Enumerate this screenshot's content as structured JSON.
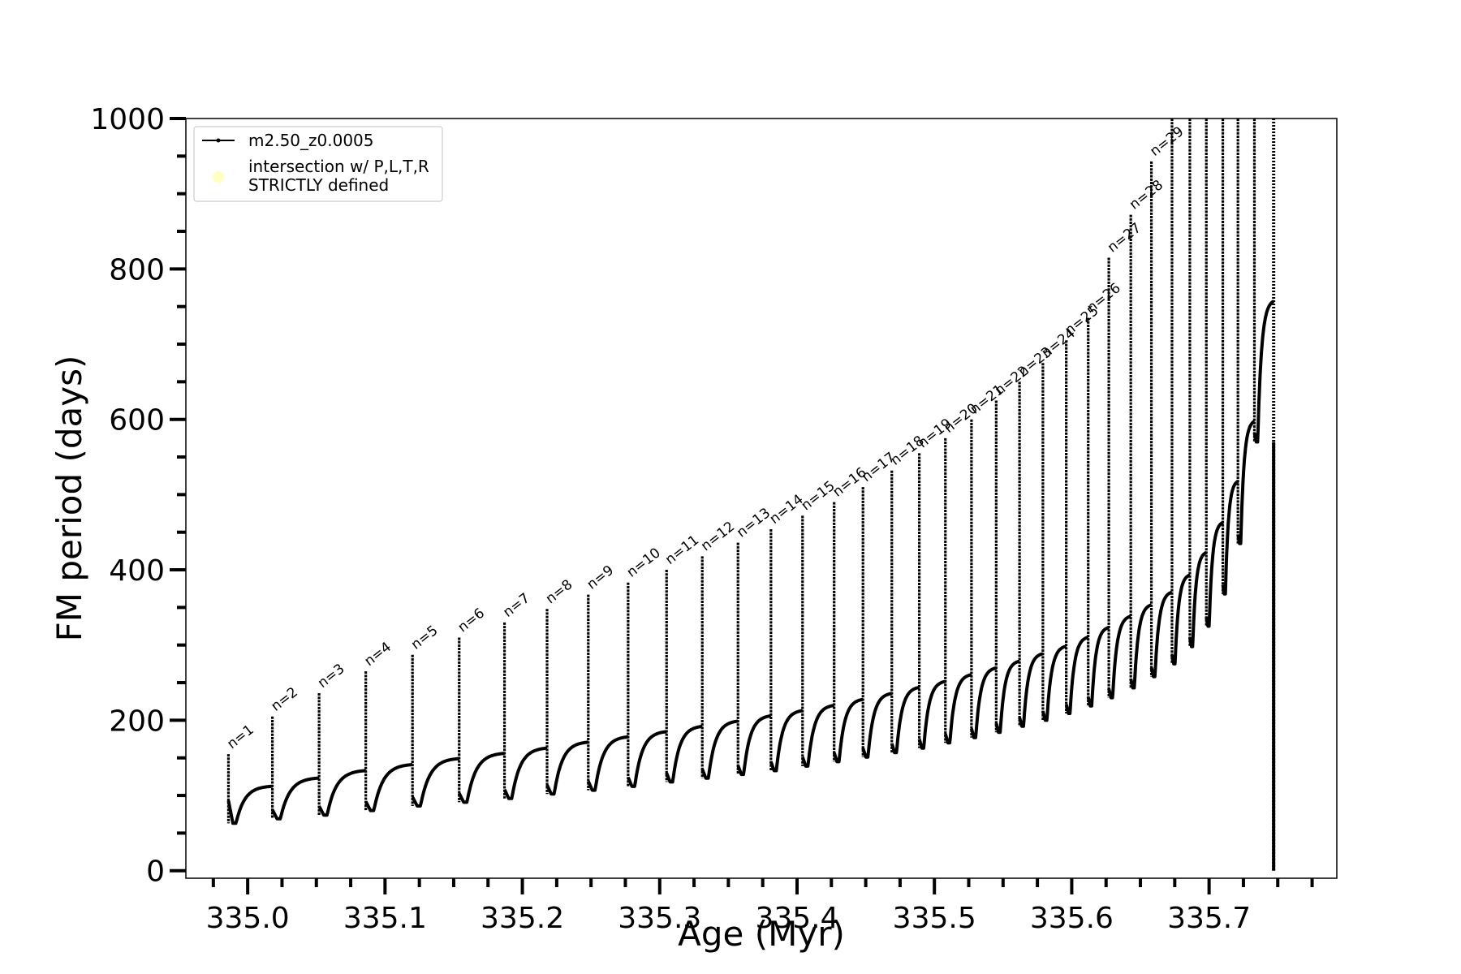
{
  "chart_data": {
    "type": "line",
    "title": "",
    "xlabel": "Age (Myr)",
    "ylabel": "FM period (days)",
    "xlim": [
      334.955,
      335.793
    ],
    "ylim": [
      -10,
      1000
    ],
    "x_ticks": [
      335.0,
      335.1,
      335.2,
      335.3,
      335.4,
      335.5,
      335.6,
      335.7
    ],
    "x_tick_labels": [
      "335.0",
      "335.1",
      "335.2",
      "335.3",
      "335.4",
      "335.5",
      "335.6",
      "335.7"
    ],
    "y_ticks": [
      0,
      200,
      400,
      600,
      800,
      1000
    ],
    "y_tick_labels": [
      "0",
      "200",
      "400",
      "600",
      "800",
      "1000"
    ],
    "x_minor_step": 0.025,
    "y_minor_step": 50,
    "grid": false,
    "legend": {
      "placement": "top-left",
      "entries": [
        {
          "label": "m2.50_z0.0005",
          "marker": "line-dot",
          "color": "#000000"
        },
        {
          "label": "intersection w/ P,L,T,R",
          "label2": "STRICTLY defined",
          "marker": "circle",
          "color": "#ffffc0"
        }
      ]
    },
    "series": [
      {
        "name": "m2.50_z0.0005",
        "color": "#000000",
        "pulses": [
          {
            "n": "n=1",
            "age": 334.986,
            "spike": 155,
            "trough": 63,
            "plateau": 113
          },
          {
            "n": "n=2",
            "age": 335.018,
            "spike": 205,
            "trough": 69,
            "plateau": 124
          },
          {
            "n": "n=3",
            "age": 335.052,
            "spike": 236,
            "trough": 74,
            "plateau": 134
          },
          {
            "n": "n=4",
            "age": 335.086,
            "spike": 265,
            "trough": 80,
            "plateau": 142
          },
          {
            "n": "n=5",
            "age": 335.12,
            "spike": 287,
            "trough": 86,
            "plateau": 150
          },
          {
            "n": "n=6",
            "age": 335.154,
            "spike": 310,
            "trough": 91,
            "plateau": 157
          },
          {
            "n": "n=7",
            "age": 335.187,
            "spike": 330,
            "trough": 96,
            "plateau": 164
          },
          {
            "n": "n=8",
            "age": 335.218,
            "spike": 348,
            "trough": 102,
            "plateau": 172
          },
          {
            "n": "n=9",
            "age": 335.248,
            "spike": 367,
            "trough": 107,
            "plateau": 179
          },
          {
            "n": "n=10",
            "age": 335.277,
            "spike": 383,
            "trough": 112,
            "plateau": 186
          },
          {
            "n": "n=11",
            "age": 335.305,
            "spike": 400,
            "trough": 118,
            "plateau": 193
          },
          {
            "n": "n=12",
            "age": 335.331,
            "spike": 418,
            "trough": 123,
            "plateau": 200
          },
          {
            "n": "n=13",
            "age": 335.357,
            "spike": 436,
            "trough": 128,
            "plateau": 207
          },
          {
            "n": "n=14",
            "age": 335.381,
            "spike": 454,
            "trough": 133,
            "plateau": 214
          },
          {
            "n": "n=15",
            "age": 335.404,
            "spike": 472,
            "trough": 139,
            "plateau": 221
          },
          {
            "n": "n=16",
            "age": 335.427,
            "spike": 490,
            "trough": 145,
            "plateau": 229
          },
          {
            "n": "n=17",
            "age": 335.448,
            "spike": 510,
            "trough": 151,
            "plateau": 237
          },
          {
            "n": "n=18",
            "age": 335.469,
            "spike": 532,
            "trough": 157,
            "plateau": 245
          },
          {
            "n": "n=19",
            "age": 335.489,
            "spike": 555,
            "trough": 163,
            "plateau": 253
          },
          {
            "n": "n=20",
            "age": 335.508,
            "spike": 575,
            "trough": 170,
            "plateau": 262
          },
          {
            "n": "n=21",
            "age": 335.527,
            "spike": 600,
            "trough": 177,
            "plateau": 271
          },
          {
            "n": "n=22",
            "age": 335.545,
            "spike": 625,
            "trough": 184,
            "plateau": 280
          },
          {
            "n": "n=23",
            "age": 335.562,
            "spike": 650,
            "trough": 192,
            "plateau": 290
          },
          {
            "n": "n=24",
            "age": 335.579,
            "spike": 675,
            "trough": 200,
            "plateau": 300
          },
          {
            "n": "n=25",
            "age": 335.596,
            "spike": 705,
            "trough": 209,
            "plateau": 312
          },
          {
            "n": "n=26",
            "age": 335.612,
            "spike": 735,
            "trough": 219,
            "plateau": 325
          },
          {
            "n": "n=27",
            "age": 335.627,
            "spike": 815,
            "trough": 230,
            "plateau": 340
          },
          {
            "n": "n=28",
            "age": 335.643,
            "spike": 872,
            "trough": 243,
            "plateau": 355
          },
          {
            "n": "n=29",
            "age": 335.658,
            "spike": 943,
            "trough": 258,
            "plateau": 372
          },
          {
            "n": "",
            "age": 335.673,
            "spike": 1000,
            "trough": 275,
            "plateau": 395
          },
          {
            "n": "",
            "age": 335.686,
            "spike": 1000,
            "trough": 298,
            "plateau": 425
          },
          {
            "n": "",
            "age": 335.698,
            "spike": 1000,
            "trough": 325,
            "plateau": 465
          },
          {
            "n": "",
            "age": 335.71,
            "spike": 1000,
            "trough": 368,
            "plateau": 520
          },
          {
            "n": "",
            "age": 335.721,
            "spike": 1000,
            "trough": 435,
            "plateau": 600
          },
          {
            "n": "",
            "age": 335.733,
            "spike": 1000,
            "trough": 570,
            "plateau": 760
          }
        ],
        "final_descent": {
          "age": 335.747,
          "top": 1000,
          "bottom": 0
        }
      }
    ]
  }
}
